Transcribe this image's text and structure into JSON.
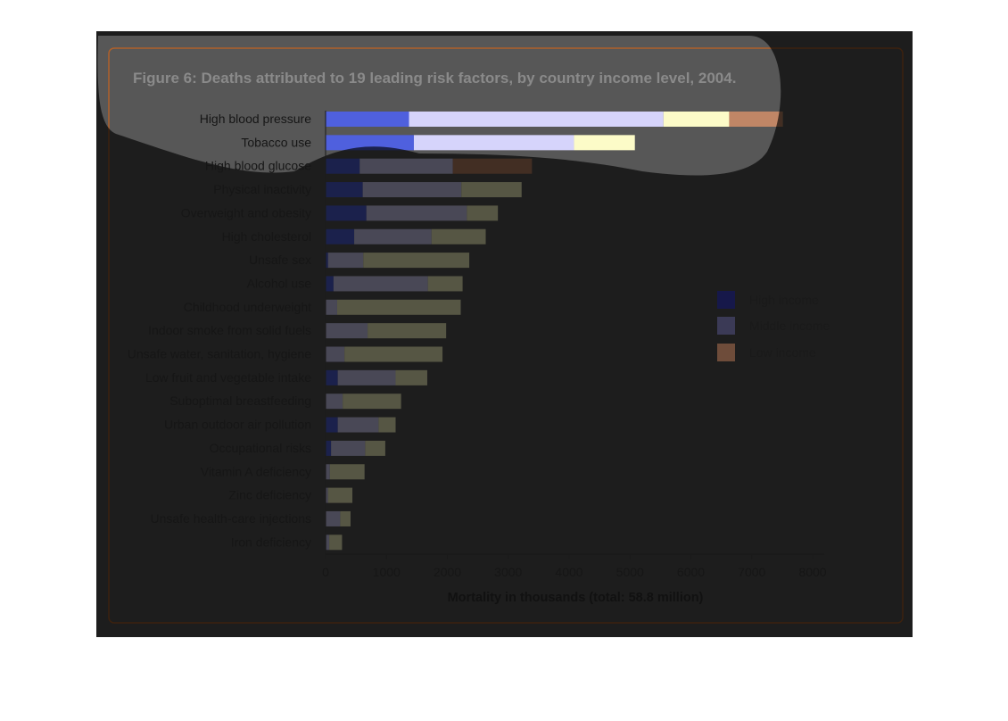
{
  "colors": {
    "page_bg": "#ffffff",
    "panel_bg": "#575757",
    "border": "#b0602a",
    "highlight": "#ffffff",
    "high_income": "#16184a",
    "middle_income": "#3b3a56",
    "low_income": "#6e4c3a",
    "high_income_lit": "#4f60de",
    "middle_income_lit": "#d6d4fb",
    "low_income_lit": "#fcfbc8",
    "low_income_edge": "#c08666"
  },
  "chart_data": {
    "type": "bar",
    "orientation": "horizontal",
    "stacked": true,
    "title": "Figure 6: Deaths attributed to 19 leading risk factors, by country income level, 2004.",
    "xlabel": "Mortality in thousands (total: 58.8 million)",
    "ylabel": "",
    "xlim": [
      0,
      8000
    ],
    "xticks": [
      0,
      1000,
      2000,
      3000,
      4000,
      5000,
      6000,
      7000,
      8000
    ],
    "grid": false,
    "legend_position": "right",
    "categories": [
      "High blood pressure",
      "Tobacco use",
      "High blood glucose",
      "Physical inactivity",
      "Overweight and obesity",
      "High cholesterol",
      "Unsafe sex",
      "Alcohol use",
      "Childhood underweight",
      "Indoor smoke from solid fuels",
      "Unsafe water, sanitation, hygiene",
      "Low fruit and vegetable intake",
      "Suboptimal breastfeeding",
      "Urban outdoor air pollution",
      "Occupational risks",
      "Vitamin A deficiency",
      "Zinc deficiency",
      "Unsafe health-care injections",
      "Iron deficiency"
    ],
    "series": [
      {
        "name": "High income",
        "values": [
          1370,
          1450,
          560,
          610,
          670,
          470,
          40,
          130,
          0,
          0,
          0,
          200,
          0,
          200,
          90,
          0,
          0,
          0,
          10
        ]
      },
      {
        "name": "Middle income",
        "values": [
          4180,
          2630,
          1530,
          1620,
          1650,
          1270,
          580,
          1550,
          190,
          690,
          310,
          950,
          280,
          670,
          560,
          70,
          40,
          240,
          50
        ]
      },
      {
        "name": "Low income",
        "values": [
          1960,
          1000,
          1300,
          990,
          510,
          890,
          1740,
          570,
          2030,
          1290,
          1610,
          520,
          960,
          280,
          330,
          570,
          400,
          170,
          210
        ]
      }
    ]
  }
}
